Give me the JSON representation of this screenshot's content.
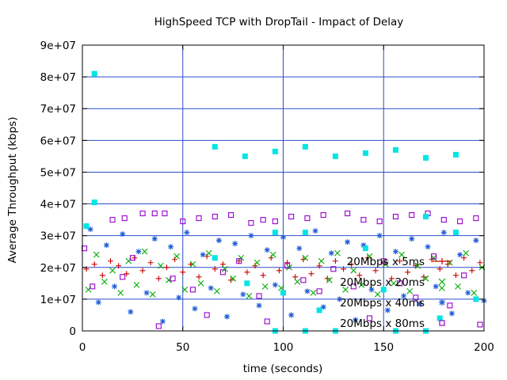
{
  "chart_data": {
    "type": "scatter",
    "title": "HighSpeed TCP with DropTail - Impact of Delay",
    "xlabel": "time (seconds)",
    "ylabel": "Average Throughput (kbps)",
    "xlim": [
      0,
      200
    ],
    "ylim": [
      0,
      90000000
    ],
    "x_ticks": [
      "0",
      "50",
      "100",
      "150",
      "200"
    ],
    "y_ticks": [
      "0",
      "1e+07",
      "2e+07",
      "3e+07",
      "4e+07",
      "5e+07",
      "6e+07",
      "7e+07",
      "8e+07",
      "9e+07"
    ],
    "grid": true,
    "legend_position": "inside-right",
    "series": [
      {
        "name": "20Mbps x 5ms",
        "marker": "plus",
        "color": "#cc0000",
        "points": [
          [
            2,
            19500000
          ],
          [
            6,
            21000000
          ],
          [
            10,
            17500000
          ],
          [
            14,
            22000000
          ],
          [
            18,
            20500000
          ],
          [
            22,
            18000000
          ],
          [
            26,
            23000000
          ],
          [
            30,
            19000000
          ],
          [
            34,
            21500000
          ],
          [
            38,
            16500000
          ],
          [
            42,
            20000000
          ],
          [
            46,
            22500000
          ],
          [
            50,
            18500000
          ],
          [
            54,
            21000000
          ],
          [
            58,
            17000000
          ],
          [
            62,
            23500000
          ],
          [
            66,
            19500000
          ],
          [
            70,
            21000000
          ],
          [
            74,
            16000000
          ],
          [
            78,
            22000000
          ],
          [
            82,
            18500000
          ],
          [
            86,
            20500000
          ],
          [
            90,
            17500000
          ],
          [
            94,
            23000000
          ],
          [
            98,
            19000000
          ],
          [
            102,
            21500000
          ],
          [
            106,
            17000000
          ],
          [
            110,
            22500000
          ],
          [
            114,
            18000000
          ],
          [
            118,
            20500000
          ],
          [
            122,
            16500000
          ],
          [
            126,
            22000000
          ],
          [
            130,
            19500000
          ],
          [
            134,
            21000000
          ],
          [
            138,
            17500000
          ],
          [
            142,
            23000000
          ],
          [
            146,
            19000000
          ],
          [
            150,
            21500000
          ],
          [
            154,
            16500000
          ],
          [
            158,
            22000000
          ],
          [
            162,
            18500000
          ],
          [
            166,
            20500000
          ],
          [
            170,
            17000000
          ],
          [
            174,
            22500000
          ],
          [
            178,
            19500000
          ],
          [
            182,
            21000000
          ],
          [
            186,
            17500000
          ],
          [
            190,
            23000000
          ],
          [
            194,
            19000000
          ],
          [
            198,
            21500000
          ]
        ]
      },
      {
        "name": "20Mbps x 20ms",
        "marker": "x",
        "color": "#00aa00",
        "points": [
          [
            3,
            13000000
          ],
          [
            7,
            24000000
          ],
          [
            11,
            15500000
          ],
          [
            15,
            19000000
          ],
          [
            19,
            12000000
          ],
          [
            23,
            22000000
          ],
          [
            27,
            14500000
          ],
          [
            31,
            25000000
          ],
          [
            35,
            11500000
          ],
          [
            39,
            20500000
          ],
          [
            43,
            16000000
          ],
          [
            47,
            23500000
          ],
          [
            51,
            13000000
          ],
          [
            55,
            21000000
          ],
          [
            59,
            15000000
          ],
          [
            63,
            24500000
          ],
          [
            67,
            12500000
          ],
          [
            71,
            19500000
          ],
          [
            75,
            16500000
          ],
          [
            79,
            23000000
          ],
          [
            83,
            11000000
          ],
          [
            87,
            21500000
          ],
          [
            91,
            14000000
          ],
          [
            95,
            24000000
          ],
          [
            99,
            13500000
          ],
          [
            103,
            20000000
          ],
          [
            107,
            15500000
          ],
          [
            111,
            23000000
          ],
          [
            115,
            12000000
          ],
          [
            119,
            22000000
          ],
          [
            123,
            16000000
          ],
          [
            127,
            24500000
          ],
          [
            131,
            13000000
          ],
          [
            135,
            19000000
          ],
          [
            139,
            14500000
          ],
          [
            143,
            23500000
          ],
          [
            147,
            11500000
          ],
          [
            151,
            21000000
          ],
          [
            155,
            15000000
          ],
          [
            159,
            24000000
          ],
          [
            163,
            12500000
          ],
          [
            167,
            20500000
          ],
          [
            171,
            16500000
          ],
          [
            175,
            23000000
          ],
          [
            179,
            13500000
          ],
          [
            183,
            21500000
          ],
          [
            187,
            14000000
          ],
          [
            191,
            24500000
          ],
          [
            195,
            12000000
          ],
          [
            199,
            20000000
          ]
        ]
      },
      {
        "name": "20Mbps x 40ms",
        "marker": "star",
        "color": "#1e5bd6",
        "points": [
          [
            4,
            32000000
          ],
          [
            8,
            9000000
          ],
          [
            12,
            27000000
          ],
          [
            16,
            14000000
          ],
          [
            20,
            30500000
          ],
          [
            24,
            6000000
          ],
          [
            28,
            25000000
          ],
          [
            32,
            12000000
          ],
          [
            36,
            29000000
          ],
          [
            40,
            3000000
          ],
          [
            44,
            26500000
          ],
          [
            48,
            10500000
          ],
          [
            52,
            31000000
          ],
          [
            56,
            7000000
          ],
          [
            60,
            24000000
          ],
          [
            64,
            13500000
          ],
          [
            68,
            28500000
          ],
          [
            72,
            4500000
          ],
          [
            76,
            27500000
          ],
          [
            80,
            11500000
          ],
          [
            84,
            30000000
          ],
          [
            88,
            8000000
          ],
          [
            92,
            25500000
          ],
          [
            96,
            14500000
          ],
          [
            100,
            29500000
          ],
          [
            104,
            5000000
          ],
          [
            108,
            26000000
          ],
          [
            112,
            12500000
          ],
          [
            116,
            31500000
          ],
          [
            120,
            7500000
          ],
          [
            124,
            24500000
          ],
          [
            128,
            10000000
          ],
          [
            132,
            28000000
          ],
          [
            136,
            3500000
          ],
          [
            140,
            27000000
          ],
          [
            144,
            13000000
          ],
          [
            148,
            30000000
          ],
          [
            152,
            6500000
          ],
          [
            156,
            25000000
          ],
          [
            160,
            11000000
          ],
          [
            164,
            29000000
          ],
          [
            168,
            8500000
          ],
          [
            172,
            26500000
          ],
          [
            176,
            14000000
          ],
          [
            180,
            31000000
          ],
          [
            184,
            5500000
          ],
          [
            188,
            24000000
          ],
          [
            192,
            12000000
          ],
          [
            196,
            28500000
          ],
          [
            200,
            9500000
          ]
        ]
      },
      {
        "name": "20Mbps x 80ms",
        "marker": "open-square",
        "color": "#9900cc",
        "points": [
          [
            1,
            26000000
          ],
          [
            5,
            14000000
          ],
          [
            15,
            35000000
          ],
          [
            21,
            35500000
          ],
          [
            30,
            37000000
          ],
          [
            36,
            37000000
          ],
          [
            41,
            37000000
          ],
          [
            50,
            34500000
          ],
          [
            58,
            35500000
          ],
          [
            66,
            36000000
          ],
          [
            74,
            36500000
          ],
          [
            84,
            34000000
          ],
          [
            90,
            35000000
          ],
          [
            96,
            34500000
          ],
          [
            104,
            36000000
          ],
          [
            112,
            35500000
          ],
          [
            120,
            36500000
          ],
          [
            132,
            37000000
          ],
          [
            140,
            35000000
          ],
          [
            148,
            34500000
          ],
          [
            156,
            36000000
          ],
          [
            164,
            36500000
          ],
          [
            172,
            37000000
          ],
          [
            180,
            35000000
          ],
          [
            188,
            34500000
          ],
          [
            196,
            35500000
          ],
          [
            20,
            17000000
          ],
          [
            25,
            23000000
          ],
          [
            38,
            1500000
          ],
          [
            45,
            16500000
          ],
          [
            55,
            13000000
          ],
          [
            62,
            5000000
          ],
          [
            70,
            18500000
          ],
          [
            78,
            22000000
          ],
          [
            88,
            11000000
          ],
          [
            92,
            3000000
          ],
          [
            102,
            20500000
          ],
          [
            110,
            16000000
          ],
          [
            118,
            12500000
          ],
          [
            125,
            19500000
          ],
          [
            135,
            14000000
          ],
          [
            143,
            4000000
          ],
          [
            150,
            22000000
          ],
          [
            158,
            15000000
          ],
          [
            166,
            10500000
          ],
          [
            175,
            23500000
          ],
          [
            183,
            8000000
          ],
          [
            190,
            17500000
          ],
          [
            198,
            2000000
          ]
        ]
      },
      {
        "name": "",
        "marker": "filled-square",
        "color": "#00e5e5",
        "points": [
          [
            6,
            81000000
          ],
          [
            6,
            40500000
          ],
          [
            2,
            33000000
          ],
          [
            66,
            58000000
          ],
          [
            81,
            55000000
          ],
          [
            96,
            56500000
          ],
          [
            111,
            58000000
          ],
          [
            126,
            55000000
          ],
          [
            141,
            56000000
          ],
          [
            156,
            57000000
          ],
          [
            171,
            54500000
          ],
          [
            186,
            55500000
          ],
          [
            66,
            23000000
          ],
          [
            96,
            31000000
          ],
          [
            111,
            31000000
          ],
          [
            141,
            26000000
          ],
          [
            171,
            36000000
          ],
          [
            186,
            31000000
          ],
          [
            82,
            15000000
          ],
          [
            100,
            12000000
          ],
          [
            118,
            6500000
          ],
          [
            150,
            13000000
          ],
          [
            178,
            4000000
          ],
          [
            196,
            10000000
          ],
          [
            96,
            0
          ],
          [
            111,
            0
          ],
          [
            126,
            0
          ],
          [
            156,
            0
          ],
          [
            171,
            0
          ]
        ]
      }
    ]
  }
}
